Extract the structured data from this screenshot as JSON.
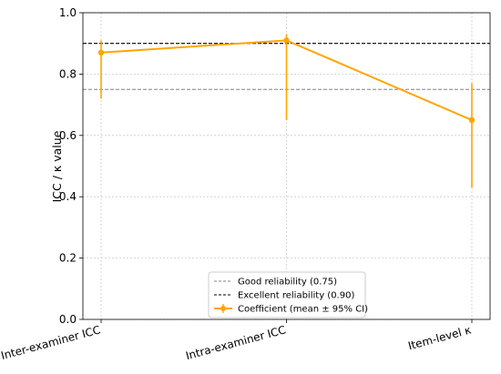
{
  "chart_data": {
    "type": "line",
    "title": "",
    "xlabel": "",
    "ylabel": "ICC / κ value",
    "ylim": [
      0,
      1.0
    ],
    "yticks": [
      "0.0",
      "0.2",
      "0.4",
      "0.6",
      "0.8",
      "1.0"
    ],
    "categories": [
      "Inter-examiner ICC",
      "Intra-examiner ICC",
      "Item-level κ"
    ],
    "grid": true,
    "legend_position": "bottom-center",
    "series": [
      {
        "name": "Coefficient (mean ± 95% CI)",
        "color": "#FFA500",
        "values": [
          0.87,
          0.91,
          0.65
        ],
        "ci_low": [
          0.72,
          0.65,
          0.43
        ],
        "ci_high": [
          0.91,
          0.93,
          0.77
        ]
      }
    ],
    "reference_lines": [
      {
        "name": "Good reliability (0.75)",
        "value": 0.75,
        "color": "#808080",
        "style": "dashed"
      },
      {
        "name": "Excellent reliability (0.90)",
        "value": 0.9,
        "color": "#000000",
        "style": "dashed"
      }
    ]
  }
}
